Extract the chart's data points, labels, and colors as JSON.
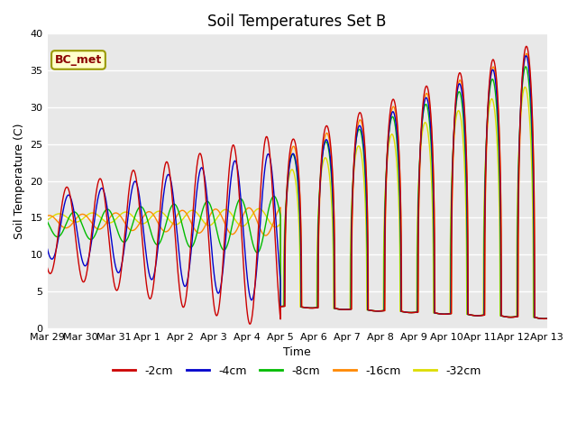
{
  "title": "Soil Temperatures Set B",
  "xlabel": "Time",
  "ylabel": "Soil Temperature (C)",
  "annotation": "BC_met",
  "ylim": [
    0,
    40
  ],
  "series_colors": {
    "-2cm": "#cc0000",
    "-4cm": "#0000cc",
    "-8cm": "#00bb00",
    "-16cm": "#ff8800",
    "-32cm": "#dddd00"
  },
  "xtick_labels": [
    "Mar 29",
    "Mar 30",
    "Mar 31",
    "Apr 1",
    "Apr 2",
    "Apr 3",
    "Apr 4",
    "Apr 5",
    "Apr 6",
    "Apr 7",
    "Apr 8",
    "Apr 9",
    "Apr 10",
    "Apr 11",
    "Apr 12",
    "Apr 13"
  ],
  "background_color": "#e8e8e8",
  "grid_color": "#ffffff"
}
